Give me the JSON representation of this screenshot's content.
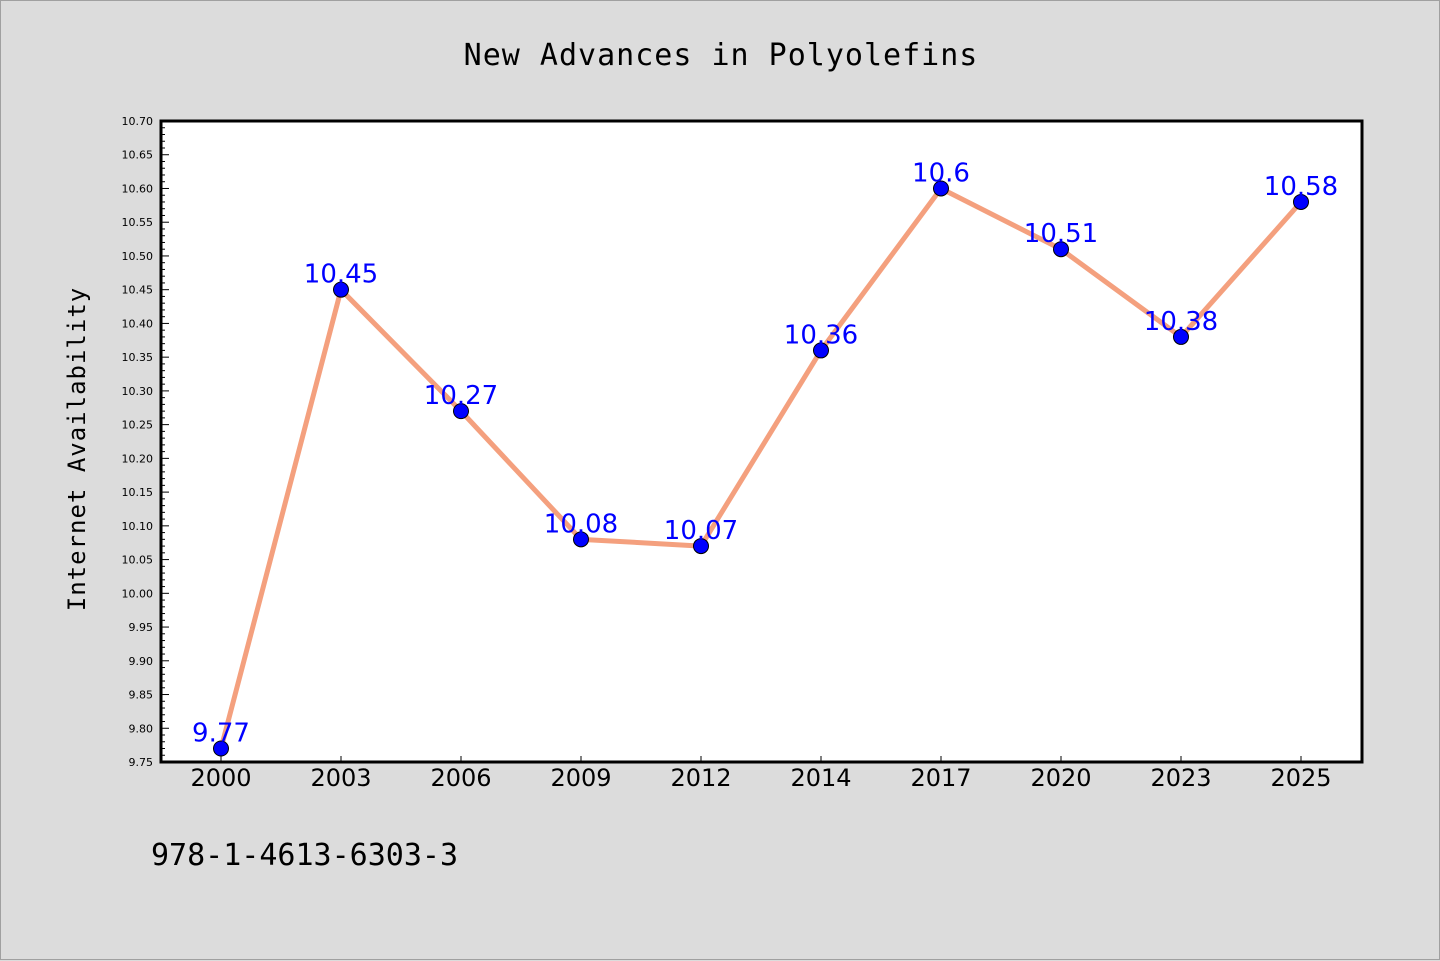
{
  "chart_data": {
    "type": "line",
    "title": "New Advances in Polyolefins",
    "xlabel": "",
    "ylabel": "Internet Availability",
    "categories": [
      "2000",
      "2003",
      "2006",
      "2009",
      "2012",
      "2014",
      "2017",
      "2020",
      "2023",
      "2025"
    ],
    "series": [
      {
        "values": [
          9.77,
          10.45,
          10.27,
          10.08,
          10.07,
          10.36,
          10.6,
          10.51,
          10.38,
          10.58
        ],
        "data_labels": [
          "9.77",
          "10.45",
          "10.27",
          "10.08",
          "10.07",
          "10.36",
          "10.6",
          "10.51",
          "10.38",
          "10.58"
        ],
        "line_color": "#f4a07e",
        "marker_color": "#0000ff"
      }
    ],
    "ylim": [
      9.75,
      10.7
    ],
    "yticks": [
      "9.75",
      "9.80",
      "9.85",
      "9.90",
      "9.95",
      "10.00",
      "10.05",
      "10.10",
      "10.15",
      "10.20",
      "10.25",
      "10.30",
      "10.35",
      "10.40",
      "10.45",
      "10.50",
      "10.55",
      "10.60",
      "10.65",
      "10.70"
    ],
    "grid": false,
    "legend": "none"
  },
  "footer": {
    "isbn": "978-1-4613-6303-3"
  },
  "colors": {
    "background": "#dcdcdc",
    "plot_background": "#ffffff"
  }
}
